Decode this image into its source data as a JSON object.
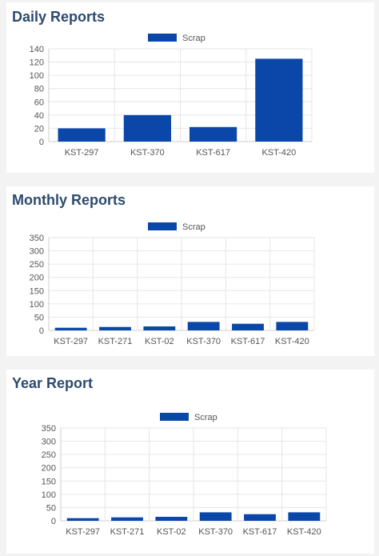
{
  "colors": {
    "bar": "#0a47a8",
    "title": "#2c4a6e"
  },
  "chart_data": [
    {
      "id": "daily",
      "title": "Daily Reports",
      "type": "bar",
      "categories": [
        "KST-297",
        "KST-370",
        "KST-617",
        "KST-420"
      ],
      "series": [
        {
          "name": "Scrap",
          "values": [
            20,
            40,
            22,
            125
          ]
        }
      ],
      "ylim": [
        0,
        140
      ],
      "yticks": [
        0,
        20,
        40,
        60,
        80,
        100,
        120,
        140
      ],
      "grid": true,
      "legend": "top-center"
    },
    {
      "id": "monthly",
      "title": "Monthly Reports",
      "type": "bar",
      "categories": [
        "KST-297",
        "KST-271",
        "KST-02",
        "KST-370",
        "KST-617",
        "KST-420"
      ],
      "series": [
        {
          "name": "Scrap",
          "values": [
            10,
            13,
            15,
            32,
            25,
            32
          ]
        }
      ],
      "ylim": [
        0,
        350
      ],
      "yticks": [
        0,
        50,
        100,
        150,
        200,
        250,
        300,
        350
      ],
      "grid": true,
      "legend": "top-center"
    },
    {
      "id": "yearly",
      "title": "Year Report",
      "type": "bar",
      "categories": [
        "KST-297",
        "KST-271",
        "KST-02",
        "KST-370",
        "KST-617",
        "KST-420"
      ],
      "series": [
        {
          "name": "Scrap",
          "values": [
            10,
            13,
            15,
            32,
            25,
            32
          ]
        }
      ],
      "ylim": [
        0,
        350
      ],
      "yticks": [
        0,
        50,
        100,
        150,
        200,
        250,
        300,
        350
      ],
      "grid": true,
      "legend": "top-center"
    }
  ]
}
